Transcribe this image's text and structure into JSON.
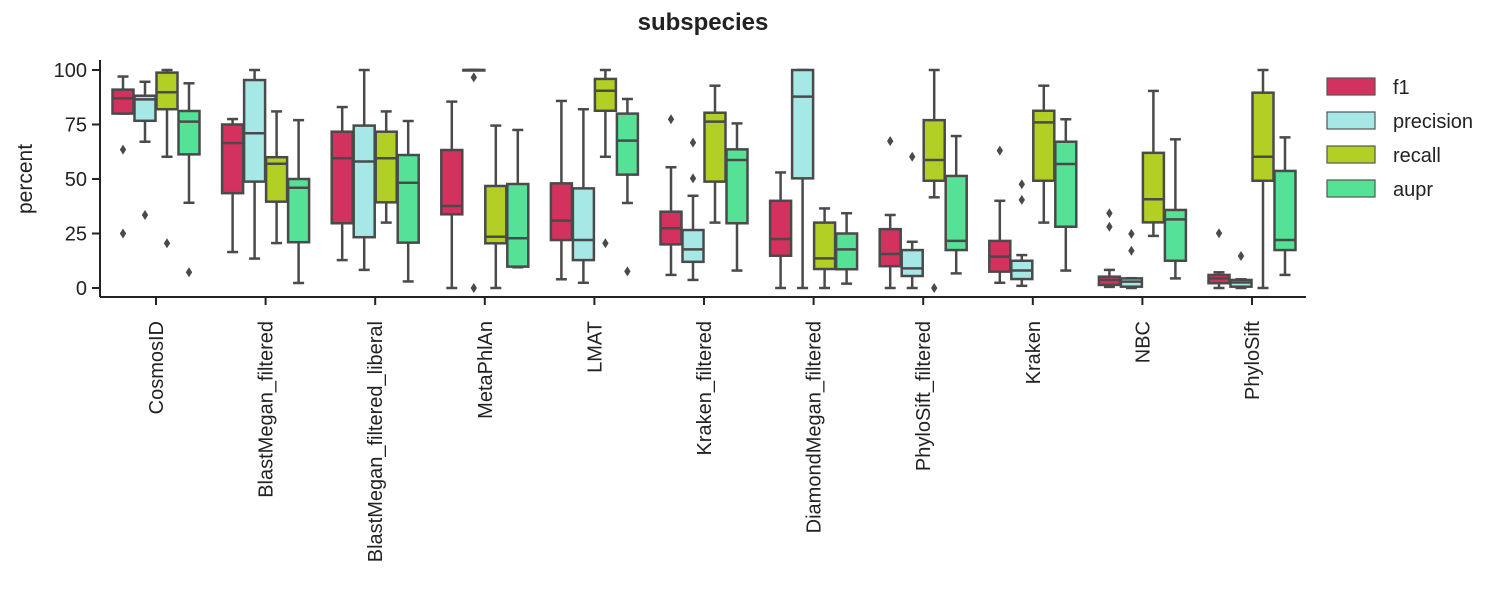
{
  "chart_data": {
    "type": "box",
    "title": "subspecies",
    "xlabel": "",
    "ylabel": "percent",
    "ylim": [
      -4,
      104
    ],
    "yticks": [
      0,
      25,
      50,
      75,
      100
    ],
    "ytick_labels": [
      "0",
      "25",
      "50",
      "75",
      "100"
    ],
    "grid": false,
    "legend_position": "right",
    "categories": [
      "CosmosID",
      "BlastMegan_filtered",
      "BlastMegan_filtered_liberal",
      "MetaPhlAn",
      "LMAT",
      "Kraken_filtered",
      "DiamondMegan_filtered",
      "PhyloSift_filtered",
      "Kraken",
      "NBC",
      "PhyloSift"
    ],
    "series": [
      {
        "name": "f1",
        "color": "#d3325f",
        "boxes": [
          {
            "whislo": 80,
            "q1": 80,
            "med": 87,
            "q3": 91,
            "whishi": 97,
            "fliers": [
              63.5,
              25
            ]
          },
          {
            "whislo": 16.5,
            "q1": 43.5,
            "med": 66.5,
            "q3": 75,
            "whishi": 77.5,
            "fliers": []
          },
          {
            "whislo": 12.8,
            "q1": 29.7,
            "med": 59.5,
            "q3": 71.7,
            "whishi": 83,
            "fliers": []
          },
          {
            "whislo": 0,
            "q1": 33.8,
            "med": 37.6,
            "q3": 63.3,
            "whishi": 85.5,
            "fliers": []
          },
          {
            "whislo": 4,
            "q1": 22,
            "med": 30.9,
            "q3": 48,
            "whishi": 85.8,
            "fliers": []
          },
          {
            "whislo": 6,
            "q1": 20,
            "med": 27.4,
            "q3": 35,
            "whishi": 55.4,
            "fliers": [
              77.4
            ]
          },
          {
            "whislo": 0,
            "q1": 14.8,
            "med": 22.5,
            "q3": 40,
            "whishi": 53,
            "fliers": []
          },
          {
            "whislo": 0,
            "q1": 10,
            "med": 15.6,
            "q3": 27,
            "whishi": 33.5,
            "fliers": [
              67.4
            ]
          },
          {
            "whislo": 2.4,
            "q1": 7.5,
            "med": 14.4,
            "q3": 21.6,
            "whishi": 40,
            "fliers": [
              63
            ]
          },
          {
            "whislo": 0.5,
            "q1": 1.4,
            "med": 3.7,
            "q3": 5.2,
            "whishi": 8.3,
            "fliers": [
              34.3,
              28.1
            ]
          },
          {
            "whislo": 0,
            "q1": 2.2,
            "med": 4.4,
            "q3": 6,
            "whishi": 7.2,
            "fliers": [
              25.1
            ]
          }
        ]
      },
      {
        "name": "precision",
        "color": "#a6e8e6",
        "boxes": [
          {
            "whislo": 67.1,
            "q1": 76.7,
            "med": 86.5,
            "q3": 88.2,
            "whishi": 94.6,
            "fliers": [
              33.5
            ]
          },
          {
            "whislo": 13.5,
            "q1": 48.8,
            "med": 71,
            "q3": 95.4,
            "whishi": 100,
            "fliers": []
          },
          {
            "whislo": 8.3,
            "q1": 23.3,
            "med": 58,
            "q3": 74.5,
            "whishi": 100,
            "fliers": []
          },
          {
            "whislo": 100,
            "q1": 100,
            "med": 100,
            "q3": 100,
            "whishi": 100,
            "fliers": [
              96.6,
              0
            ]
          },
          {
            "whislo": 2.4,
            "q1": 12.8,
            "med": 22,
            "q3": 45.7,
            "whishi": 82,
            "fliers": []
          },
          {
            "whislo": 3.7,
            "q1": 12,
            "med": 17.7,
            "q3": 26.6,
            "whishi": 42.3,
            "fliers": [
              66.7,
              50.3
            ]
          },
          {
            "whislo": 0,
            "q1": 50.3,
            "med": 87.8,
            "q3": 100,
            "whishi": 100,
            "fliers": []
          },
          {
            "whislo": 0,
            "q1": 5.5,
            "med": 9,
            "q3": 17.4,
            "whishi": 21.2,
            "fliers": [
              60.2
            ]
          },
          {
            "whislo": 1,
            "q1": 4.1,
            "med": 8,
            "q3": 12.5,
            "whishi": 15.1,
            "fliers": [
              47.6,
              40.4
            ]
          },
          {
            "whislo": 0,
            "q1": 0.6,
            "med": 2.9,
            "q3": 4.4,
            "whishi": 4.5,
            "fliers": [
              24.8,
              17.1
            ]
          },
          {
            "whislo": 0,
            "q1": 0.6,
            "med": 2.5,
            "q3": 3.7,
            "whishi": 4,
            "fliers": [
              14.7
            ]
          }
        ]
      },
      {
        "name": "recall",
        "color": "#b2cf26",
        "boxes": [
          {
            "whislo": 60.2,
            "q1": 82,
            "med": 89.8,
            "q3": 98.8,
            "whishi": 100,
            "fliers": [
              20.5
            ]
          },
          {
            "whislo": 20.6,
            "q1": 39.6,
            "med": 57,
            "q3": 60,
            "whishi": 81,
            "fliers": []
          },
          {
            "whislo": 30,
            "q1": 39.3,
            "med": 59.5,
            "q3": 71.7,
            "whishi": 81,
            "fliers": []
          },
          {
            "whislo": 0,
            "q1": 20.5,
            "med": 23.5,
            "q3": 46.8,
            "whishi": 74.5,
            "fliers": []
          },
          {
            "whislo": 60.2,
            "q1": 81.3,
            "med": 90.5,
            "q3": 95.9,
            "whishi": 100,
            "fliers": [
              20.5
            ]
          },
          {
            "whislo": 30,
            "q1": 48.8,
            "med": 76.3,
            "q3": 80.4,
            "whishi": 92.8,
            "fliers": []
          },
          {
            "whislo": 0,
            "q1": 8.7,
            "med": 13.6,
            "q3": 30,
            "whishi": 36.5,
            "fliers": []
          },
          {
            "whislo": 41.6,
            "q1": 49.2,
            "med": 58.7,
            "q3": 77,
            "whishi": 100,
            "fliers": [
              0
            ]
          },
          {
            "whislo": 30,
            "q1": 49.2,
            "med": 76,
            "q3": 81.3,
            "whishi": 92.8,
            "fliers": []
          },
          {
            "whislo": 23.9,
            "q1": 30.1,
            "med": 40.7,
            "q3": 62,
            "whishi": 90.4,
            "fliers": []
          },
          {
            "whislo": 0,
            "q1": 49.2,
            "med": 60.2,
            "q3": 89.6,
            "whishi": 100,
            "fliers": []
          }
        ]
      },
      {
        "name": "aupr",
        "color": "#55e296",
        "boxes": [
          {
            "whislo": 39.1,
            "q1": 61.3,
            "med": 76.3,
            "q3": 81.2,
            "whishi": 93.9,
            "fliers": [
              7.2
            ]
          },
          {
            "whislo": 2.3,
            "q1": 21,
            "med": 46,
            "q3": 50,
            "whishi": 77,
            "fliers": []
          },
          {
            "whislo": 3,
            "q1": 20.8,
            "med": 48.3,
            "q3": 61,
            "whishi": 76.6,
            "fliers": []
          },
          {
            "whislo": 9.5,
            "q1": 9.8,
            "med": 22.8,
            "q3": 47.7,
            "whishi": 72.5,
            "fliers": []
          },
          {
            "whislo": 39,
            "q1": 52,
            "med": 67.6,
            "q3": 80,
            "whishi": 86.7,
            "fliers": [
              7.6
            ]
          },
          {
            "whislo": 8,
            "q1": 29.7,
            "med": 58.7,
            "q3": 63.6,
            "whishi": 75.5,
            "fliers": []
          },
          {
            "whislo": 2,
            "q1": 8.6,
            "med": 17.7,
            "q3": 25,
            "whishi": 34.3,
            "fliers": []
          },
          {
            "whislo": 6.7,
            "q1": 17.4,
            "med": 21.6,
            "q3": 51.4,
            "whishi": 69.7,
            "fliers": []
          },
          {
            "whislo": 8,
            "q1": 28.1,
            "med": 56.9,
            "q3": 67.1,
            "whishi": 77.4,
            "fliers": []
          },
          {
            "whislo": 4.4,
            "q1": 12.5,
            "med": 31.5,
            "q3": 35.8,
            "whishi": 68.2,
            "fliers": []
          },
          {
            "whislo": 6,
            "q1": 17.4,
            "med": 22,
            "q3": 53.7,
            "whishi": 69.1,
            "fliers": []
          }
        ]
      }
    ],
    "line_color": "#4a4a4a"
  }
}
